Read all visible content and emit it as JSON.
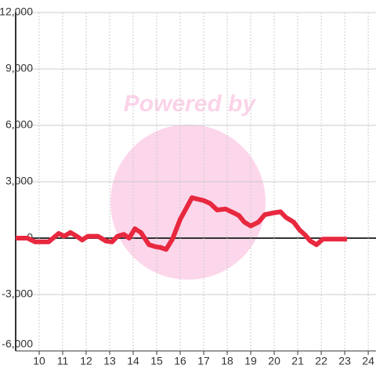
{
  "chart_data": {
    "type": "line",
    "watermark": "Powered by",
    "x": [
      9.0,
      9.5,
      9.83,
      10.4,
      10.83,
      11.07,
      11.33,
      11.6,
      11.83,
      12.07,
      12.5,
      12.83,
      13.1,
      13.33,
      13.6,
      13.83,
      14.07,
      14.33,
      14.67,
      14.93,
      15.17,
      15.4,
      15.67,
      16.0,
      16.5,
      17.0,
      17.27,
      17.57,
      17.93,
      18.27,
      18.5,
      18.73,
      19.0,
      19.33,
      19.6,
      20.0,
      20.27,
      20.5,
      20.83,
      21.07,
      21.33,
      21.53,
      21.8,
      22.07,
      22.5,
      23.1
    ],
    "series": [
      {
        "color": "#e8283f",
        "values": [
          0,
          0,
          -200,
          -200,
          250,
          100,
          300,
          100,
          -100,
          100,
          100,
          -150,
          -200,
          100,
          200,
          0,
          500,
          300,
          -350,
          -450,
          -500,
          -600,
          -50,
          1000,
          2150,
          2000,
          1850,
          1500,
          1550,
          1350,
          1200,
          850,
          650,
          850,
          1250,
          1350,
          1400,
          1100,
          850,
          450,
          150,
          -150,
          -350,
          -50,
          -50,
          -50
        ]
      }
    ],
    "xlim": [
      9,
      24.33
    ],
    "xticks": [
      10,
      11,
      12,
      13,
      14,
      15,
      16,
      17,
      18,
      19,
      20,
      21,
      22,
      23,
      24
    ],
    "ylim": [
      -6000,
      12000
    ],
    "yticks": [
      {
        "value": -6000,
        "label": "-6,000"
      },
      {
        "value": -3000,
        "label": "-3,000"
      },
      0,
      {
        "value": 3000,
        "label": "3,000"
      },
      {
        "value": 6000,
        "label": "6,000"
      },
      {
        "value": 9000,
        "label": "9,000"
      },
      {
        "value": 12000,
        "label": "12,000"
      }
    ],
    "grid": true
  }
}
